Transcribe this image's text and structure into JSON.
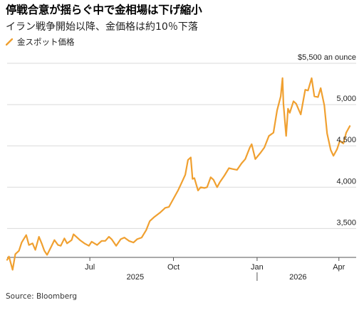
{
  "title": "停戦合意が揺らぐ中で金相場は下げ縮小",
  "subtitle": "イラン戦争開始以降、金価格は約10％下落",
  "source": "Source: Bloomberg",
  "colors": {
    "line": "#f0a030",
    "grid": "#d9d9d9",
    "axis": "#555555"
  },
  "chart_data": {
    "type": "line",
    "unit_label": "$5,500 an ounce",
    "y_ticks": [
      {
        "value": 5000,
        "label": "5,000"
      },
      {
        "value": 4500,
        "label": "4,500"
      },
      {
        "value": 4000,
        "label": "4,000"
      },
      {
        "value": 3500,
        "label": "3,500"
      }
    ],
    "y_top": {
      "value": 5500
    },
    "ylim": [
      3150,
      5500
    ],
    "xlim": [
      "2025-04-01",
      "2026-04-20"
    ],
    "x_ticks": [
      {
        "date": "2025-07-01",
        "label": "Jul"
      },
      {
        "date": "2025-10-01",
        "label": "Oct"
      },
      {
        "date": "2026-01-01",
        "label": "Jan"
      },
      {
        "date": "2026-04-01",
        "label": "Apr"
      }
    ],
    "year_labels": [
      {
        "date": "2025-08-20",
        "label": "2025"
      },
      {
        "date": "2026-02-15",
        "label": "2026"
      }
    ],
    "year_divider": "2026-01-01",
    "series": [
      {
        "name": "金スポット価格",
        "x": [
          "2025-04-01",
          "2025-04-03",
          "2025-04-07",
          "2025-04-10",
          "2025-04-14",
          "2025-04-17",
          "2025-04-22",
          "2025-04-25",
          "2025-04-29",
          "2025-05-02",
          "2025-05-06",
          "2025-05-09",
          "2025-05-12",
          "2025-05-15",
          "2025-05-20",
          "2025-05-23",
          "2025-05-27",
          "2025-05-30",
          "2025-06-03",
          "2025-06-06",
          "2025-06-11",
          "2025-06-13",
          "2025-06-17",
          "2025-06-20",
          "2025-06-25",
          "2025-06-30",
          "2025-07-03",
          "2025-07-09",
          "2025-07-14",
          "2025-07-18",
          "2025-07-22",
          "2025-07-25",
          "2025-07-30",
          "2025-08-04",
          "2025-08-08",
          "2025-08-13",
          "2025-08-18",
          "2025-08-22",
          "2025-08-27",
          "2025-09-01",
          "2025-09-05",
          "2025-09-10",
          "2025-09-16",
          "2025-09-22",
          "2025-09-26",
          "2025-10-01",
          "2025-10-06",
          "2025-10-09",
          "2025-10-14",
          "2025-10-17",
          "2025-10-20",
          "2025-10-22",
          "2025-10-24",
          "2025-10-28",
          "2025-10-31",
          "2025-11-04",
          "2025-11-07",
          "2025-11-11",
          "2025-11-14",
          "2025-11-18",
          "2025-11-21",
          "2025-11-26",
          "2025-12-01",
          "2025-12-05",
          "2025-12-10",
          "2025-12-15",
          "2025-12-19",
          "2025-12-24",
          "2025-12-26",
          "2025-12-30",
          "2026-01-05",
          "2026-01-09",
          "2026-01-14",
          "2026-01-19",
          "2026-01-23",
          "2026-01-27",
          "2026-01-29",
          "2026-01-30",
          "2026-02-02",
          "2026-02-04",
          "2026-02-06",
          "2026-02-10",
          "2026-02-13",
          "2026-02-18",
          "2026-02-23",
          "2026-02-26",
          "2026-03-02",
          "2026-03-05",
          "2026-03-09",
          "2026-03-12",
          "2026-03-16",
          "2026-03-19",
          "2026-03-23",
          "2026-03-26",
          "2026-03-30",
          "2026-04-02",
          "2026-04-06",
          "2026-04-09",
          "2026-04-13"
        ],
        "y": [
          3120,
          3160,
          3000,
          3190,
          3230,
          3330,
          3420,
          3300,
          3320,
          3240,
          3400,
          3320,
          3230,
          3180,
          3290,
          3360,
          3300,
          3290,
          3380,
          3320,
          3360,
          3430,
          3390,
          3360,
          3320,
          3290,
          3340,
          3300,
          3350,
          3350,
          3400,
          3370,
          3290,
          3370,
          3390,
          3350,
          3330,
          3370,
          3390,
          3480,
          3590,
          3640,
          3690,
          3750,
          3760,
          3860,
          3960,
          4030,
          4150,
          4330,
          4360,
          4100,
          4110,
          3960,
          4000,
          3990,
          4000,
          4120,
          4090,
          4000,
          4060,
          4140,
          4230,
          4220,
          4210,
          4290,
          4340,
          4480,
          4520,
          4340,
          4420,
          4480,
          4620,
          4660,
          4930,
          5100,
          5320,
          5010,
          4620,
          4950,
          4900,
          5040,
          5010,
          4880,
          5180,
          5170,
          5320,
          5100,
          5090,
          5200,
          4990,
          4650,
          4450,
          4380,
          4460,
          4560,
          4530,
          4660,
          4740
        ]
      }
    ]
  }
}
